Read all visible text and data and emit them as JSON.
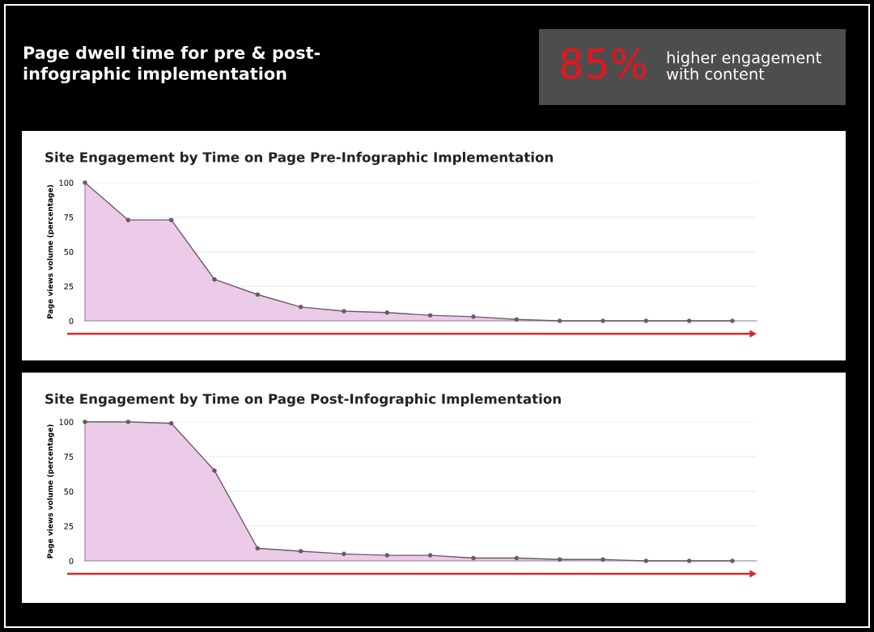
{
  "chart_data": [
    {
      "type": "other",
      "title": "Page dwell time for pre & post-infographic implementation",
      "annotations": [
        "85%",
        "higher engagement with content"
      ]
    },
    {
      "type": "area",
      "title": "Site Engagement by Time on Page Pre-Infographic Implementation",
      "ylabel": "Page views volume (percentage)",
      "categories": [
        null,
        null,
        null,
        null,
        null,
        null,
        null,
        null,
        null,
        null,
        null,
        null,
        null,
        null,
        null,
        null
      ],
      "series": [
        {
          "color": "#ebcbe8",
          "values": [
            100,
            73,
            73,
            30,
            19,
            10,
            7,
            6,
            4,
            3,
            1,
            0,
            0,
            0,
            0,
            0
          ]
        }
      ],
      "ylim": [
        0,
        100
      ],
      "yticks": [
        0,
        25,
        50,
        75,
        100
      ],
      "grid": "y",
      "marker": "circle",
      "tick_labels": "y"
    },
    {
      "type": "area",
      "title": "Site Engagement by Time on Page Post-Infographic Implementation",
      "ylabel": "Page views volume (percentage)",
      "categories": [
        null,
        null,
        null,
        null,
        null,
        null,
        null,
        null,
        null,
        null,
        null,
        null,
        null,
        null,
        null,
        null
      ],
      "series": [
        {
          "color": "#ebcbe8",
          "values": [
            100,
            100,
            99,
            65,
            9,
            7,
            5,
            4,
            4,
            2,
            2,
            1,
            1,
            0,
            0,
            0
          ]
        }
      ],
      "ylim": [
        0,
        100
      ],
      "yticks": [
        0,
        25,
        50,
        75,
        100
      ],
      "grid": "y",
      "marker": "circle",
      "tick_labels": "y"
    }
  ]
}
